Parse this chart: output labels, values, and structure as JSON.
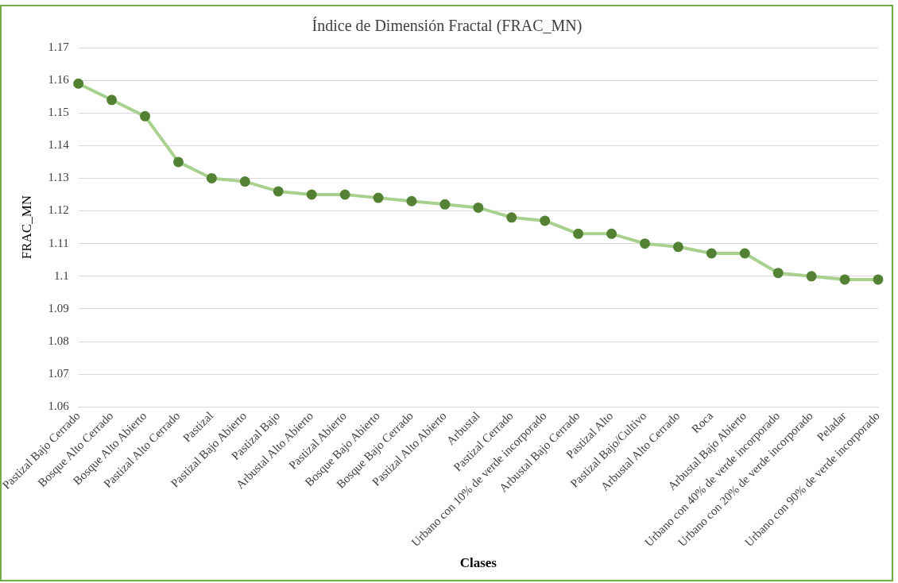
{
  "chart_data": {
    "type": "line",
    "title": "Índice de Dimensión Fractal (FRAC_MN)",
    "xlabel": "Clases",
    "ylabel": "FRAC_MN",
    "categories": [
      "Pastizal Bajo Cerrado",
      "Bosque Alto Cerrado",
      "Bosque Alto Abierto",
      "Pastizal Alto Cerrado",
      "Pastizal",
      "Pastizal Bajo Abierto",
      "Pastizal Bajo",
      "Arbustal Alto Abierto",
      "Pastizal Abierto",
      "Bosque Bajo Abierto",
      "Bosque Bajo Cerrado",
      "Pastizal Alto Abierto",
      "Arbustal",
      "Pastizal Cerrado",
      "Urbano con 10% de verde incorporado",
      "Arbustal Bajo Cerrado",
      "Pastizal Alto",
      "Pastizal Bajo/Cultivo",
      "Arbustal Alto Cerrado",
      "Roca",
      "Arbustal Bajo Abierto",
      "Urbano con 40% de verde incorporado",
      "Urbano con 20% de verde incorporado",
      "Peladar",
      "Urbano con 90% de verde incorporado"
    ],
    "series": [
      {
        "color": "#a9d18e",
        "values": [
          1.159,
          1.154,
          1.149,
          1.135,
          1.13,
          1.129,
          1.126,
          1.125,
          1.125,
          1.124,
          1.123,
          1.122,
          1.121,
          1.118,
          1.117,
          1.113,
          1.113,
          1.11,
          1.109,
          1.107,
          1.107,
          1.101,
          1.1,
          1.099,
          1.099
        ]
      }
    ],
    "marker": "circle",
    "line_style": "solid",
    "grid": "y",
    "legend": false,
    "ylim": [
      1.06,
      1.17
    ],
    "yticks": [
      1.06,
      1.07,
      1.08,
      1.09,
      1.1,
      1.11,
      1.12,
      1.13,
      1.14,
      1.15,
      1.16,
      1.17
    ]
  }
}
